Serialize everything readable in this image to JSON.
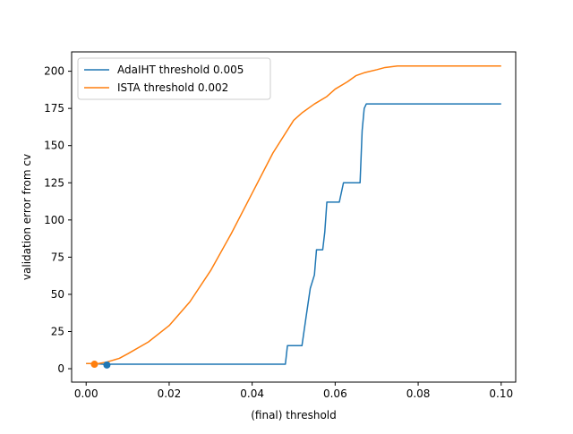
{
  "chart_data": {
    "type": "line",
    "title": "",
    "xlabel": "(final) threshold",
    "ylabel": "validation error from cv",
    "xlim": [
      -0.0035,
      0.1035
    ],
    "ylim": [
      -9.0,
      213.0
    ],
    "xticks": [
      0.0,
      0.02,
      0.04,
      0.06,
      0.08,
      0.1
    ],
    "xtick_labels": [
      "0.00",
      "0.02",
      "0.04",
      "0.06",
      "0.08",
      "0.10"
    ],
    "yticks": [
      0,
      25,
      50,
      75,
      100,
      125,
      150,
      175,
      200
    ],
    "ytick_labels": [
      "0",
      "25",
      "50",
      "75",
      "100",
      "125",
      "150",
      "175",
      "200"
    ],
    "grid": false,
    "legend_position": "top-left",
    "series": [
      {
        "name": "AdaIHT threshold 0.005",
        "color": "#1f77b4",
        "x": [
          0.0,
          0.002,
          0.004,
          0.005,
          0.006,
          0.01,
          0.02,
          0.03,
          0.04,
          0.046,
          0.048,
          0.0485,
          0.05,
          0.0515,
          0.052,
          0.053,
          0.054,
          0.055,
          0.0555,
          0.056,
          0.057,
          0.0575,
          0.058,
          0.059,
          0.0605,
          0.061,
          0.062,
          0.0625,
          0.064,
          0.0655,
          0.066,
          0.0665,
          0.067,
          0.0675,
          0.068,
          0.07,
          0.08,
          0.09,
          0.1
        ],
        "y": [
          3.5,
          3.5,
          3.0,
          2.5,
          3.0,
          3.0,
          3.0,
          3.0,
          3.0,
          3.0,
          3.0,
          15.5,
          15.5,
          15.5,
          15.5,
          35.0,
          54.0,
          63.0,
          80.0,
          80.0,
          80.0,
          92.0,
          112.0,
          112.0,
          112.0,
          112.0,
          125.0,
          125.0,
          125.0,
          125.0,
          125.0,
          160.0,
          175.0,
          178.0,
          178.0,
          178.0,
          178.0,
          178.0,
          178.0
        ]
      },
      {
        "name": "ISTA threshold 0.002",
        "color": "#ff7f0e",
        "x": [
          0.0,
          0.001,
          0.002,
          0.003,
          0.005,
          0.008,
          0.01,
          0.015,
          0.02,
          0.025,
          0.03,
          0.035,
          0.04,
          0.045,
          0.05,
          0.052,
          0.055,
          0.058,
          0.06,
          0.063,
          0.065,
          0.067,
          0.07,
          0.072,
          0.075,
          0.08,
          0.09,
          0.1
        ],
        "y": [
          3.5,
          3.5,
          3.0,
          3.5,
          4.5,
          7.0,
          10.0,
          18.0,
          29.0,
          45.0,
          66.0,
          91.0,
          118.0,
          145.0,
          167.0,
          172.0,
          178.0,
          183.0,
          188.0,
          193.0,
          197.0,
          199.0,
          201.0,
          202.5,
          203.5,
          203.5,
          203.5,
          203.5
        ]
      }
    ],
    "markers": [
      {
        "series": "AdaIHT threshold 0.005",
        "x": 0.005,
        "y": 2.5,
        "color": "#1f77b4"
      },
      {
        "series": "ISTA threshold 0.002",
        "x": 0.002,
        "y": 3.0,
        "color": "#ff7f0e"
      }
    ]
  }
}
